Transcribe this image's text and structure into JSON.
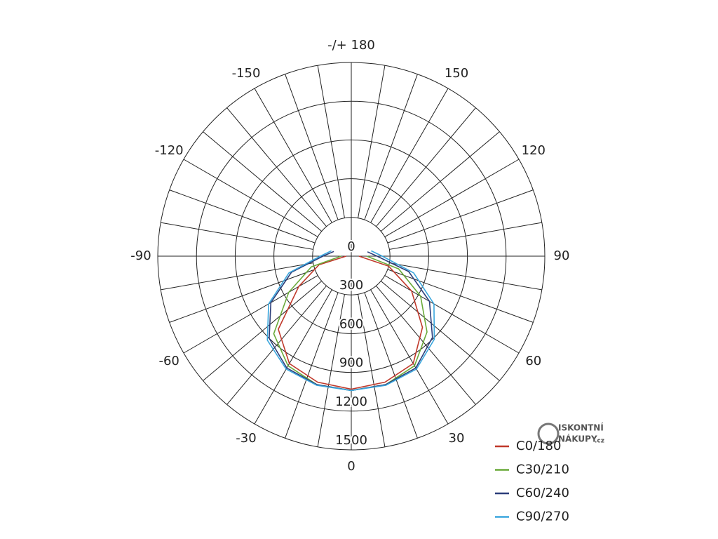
{
  "chart_data": {
    "type": "polar",
    "angle_ticks": [
      0,
      30,
      60,
      90,
      120,
      150,
      {
        "value": 180,
        "label": "-/+ 180"
      },
      -150,
      -120,
      -90,
      -60,
      -30
    ],
    "rlim": [
      0,
      1500
    ],
    "rticks": [
      0,
      300,
      600,
      900,
      1200,
      1500
    ],
    "x": [
      -105,
      -90,
      -75,
      -60,
      -45,
      -30,
      -15,
      0,
      15,
      30,
      45,
      60,
      75,
      90,
      105
    ],
    "series": [
      {
        "name": "C0/180",
        "color": "#c0392b",
        "values": [
          null,
          40,
          260,
          470,
          800,
          960,
          1010,
          1030,
          1010,
          960,
          780,
          540,
          300,
          60,
          null
        ]
      },
      {
        "name": "C30/210",
        "color": "#6aaa3a",
        "values": [
          null,
          80,
          320,
          560,
          850,
          980,
          1030,
          1040,
          1030,
          980,
          830,
          620,
          380,
          120,
          null
        ]
      },
      {
        "name": "C60/240",
        "color": "#2c3e7a",
        "values": [
          140,
          220,
          480,
          720,
          900,
          1000,
          1030,
          1040,
          1030,
          1000,
          890,
          700,
          460,
          200,
          130
        ]
      },
      {
        "name": "C90/270",
        "color": "#3aa6dd",
        "values": [
          160,
          240,
          500,
          740,
          920,
          1010,
          1035,
          1040,
          1035,
          1010,
          910,
          740,
          500,
          240,
          160
        ]
      }
    ],
    "legend": "bottom-right"
  },
  "watermark": {
    "line1": "ISKONTNÍ",
    "line2": "NÁKUPY",
    "suffix": ".cz"
  }
}
